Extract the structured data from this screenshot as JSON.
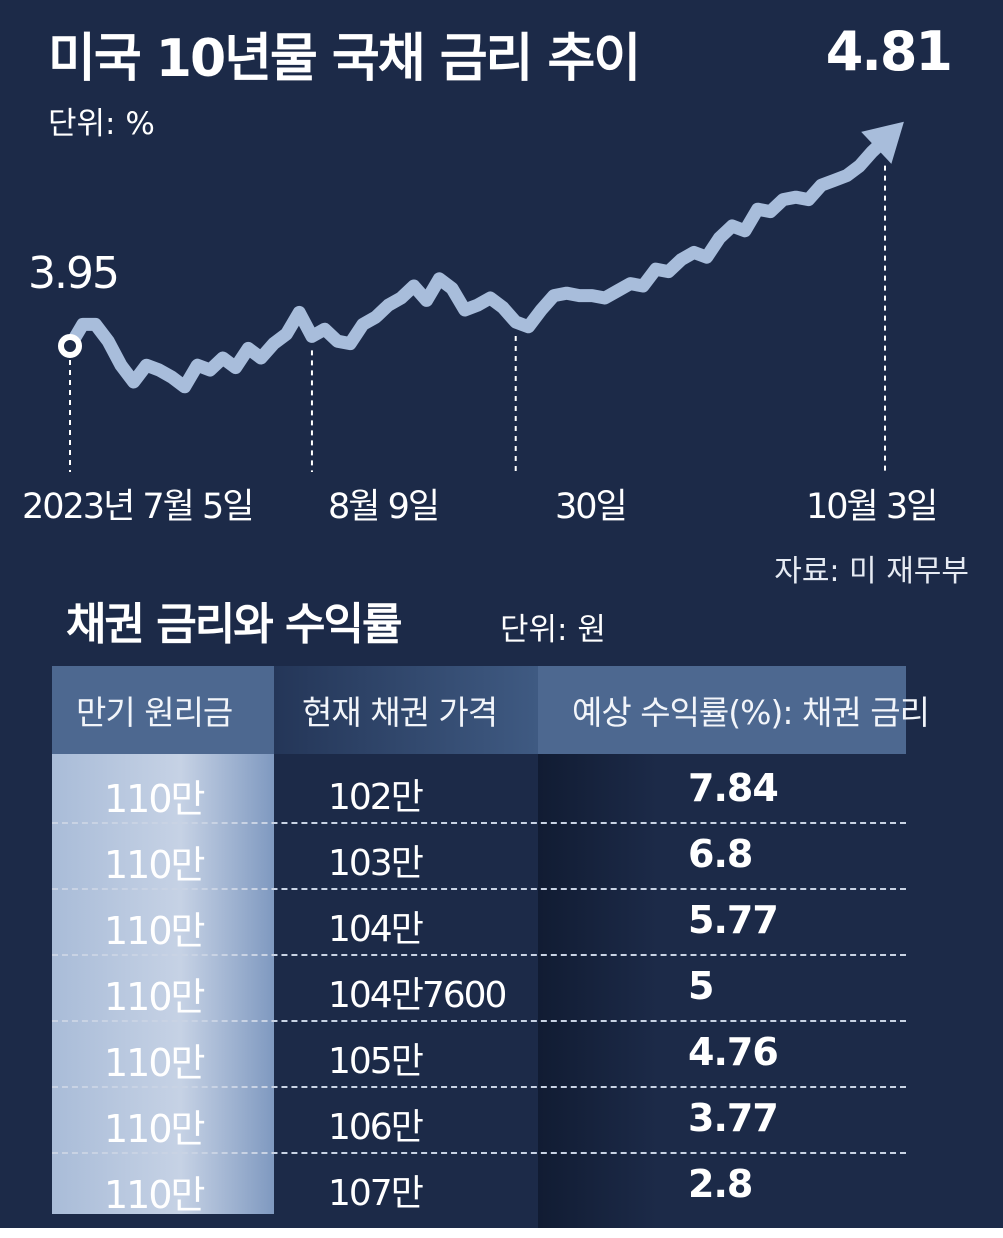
{
  "header": {
    "title": "미국 10년물 국채 금리 추이",
    "unit": "단위: %",
    "source": "자료: 미 재무부"
  },
  "chart_data": {
    "type": "line",
    "title": "미국 10년물 국채 금리 추이",
    "unit": "%",
    "start_label": "3.95",
    "end_label": "4.81",
    "x_tick_labels": [
      "2023년 7월 5일",
      "8월 9일",
      "30일",
      "10월 3일"
    ],
    "ylim": [
      3.6,
      4.85
    ],
    "series": [
      {
        "name": "미국 10년물 국채 금리",
        "x": [
          0,
          1,
          2,
          3,
          4,
          5,
          6,
          7,
          8,
          9,
          10,
          11,
          12,
          13,
          14,
          15,
          16,
          17,
          18,
          19,
          20,
          21,
          22,
          23,
          24,
          25,
          26,
          27,
          28,
          29,
          30,
          31,
          32,
          33,
          34,
          35,
          36,
          37,
          38,
          39,
          40,
          41,
          42,
          43,
          44,
          45,
          46,
          47,
          48,
          49,
          50,
          51,
          52,
          53,
          54,
          55,
          56,
          57,
          58,
          59,
          60,
          61,
          62,
          63,
          64
        ],
        "values": [
          3.95,
          4.04,
          4.04,
          3.97,
          3.87,
          3.8,
          3.87,
          3.85,
          3.82,
          3.78,
          3.87,
          3.85,
          3.9,
          3.86,
          3.94,
          3.9,
          3.96,
          4.0,
          4.09,
          3.99,
          4.02,
          3.97,
          3.96,
          4.04,
          4.07,
          4.12,
          4.15,
          4.2,
          4.14,
          4.23,
          4.19,
          4.1,
          4.12,
          4.15,
          4.11,
          4.05,
          4.03,
          4.1,
          4.16,
          4.17,
          4.16,
          4.16,
          4.15,
          4.18,
          4.21,
          4.2,
          4.27,
          4.26,
          4.31,
          4.34,
          4.32,
          4.4,
          4.45,
          4.43,
          4.52,
          4.51,
          4.56,
          4.57,
          4.56,
          4.62,
          4.64,
          4.66,
          4.7,
          4.76,
          4.81
        ]
      }
    ]
  },
  "table": {
    "title": "채권 금리와 수익률",
    "unit": "단위: 원",
    "headers": [
      "만기 원리금",
      "현재 채권 가격",
      "예상 수익률(%): 채권 금리"
    ],
    "rows": [
      [
        "110만",
        "102만",
        "7.84"
      ],
      [
        "110만",
        "103만",
        "6.8"
      ],
      [
        "110만",
        "104만",
        "5.77"
      ],
      [
        "110만",
        "104만7600",
        "5"
      ],
      [
        "110만",
        "105만",
        "4.76"
      ],
      [
        "110만",
        "106만",
        "3.77"
      ],
      [
        "110만",
        "107만",
        "2.8"
      ]
    ]
  },
  "colors": {
    "background": "#1c2a48",
    "line": "#a8bddb",
    "header_bar": "#4d6890",
    "first_column": "#c6d2e5"
  }
}
